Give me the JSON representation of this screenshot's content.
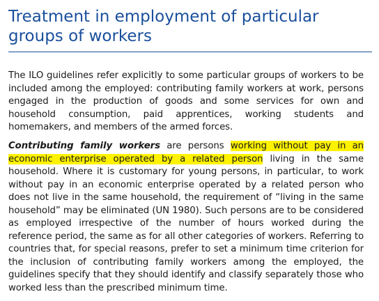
{
  "document": {
    "title": "Treatment in employment of particular groups of workers",
    "paragraph1": "The ILO guidelines refer explicitly to some particular groups of workers to be included among the employed: contributing family workers at work, persons engaged in the production of goods and some services for own and household consumption, paid apprentices, working students and homemakers, and members of the armed forces.",
    "paragraph2": {
      "term": "Contributing family workers",
      "text_before_highlight": " are persons ",
      "highlighted": "working without pay in an economic enterprise operated by a related person",
      "text_after_highlight": " living in the same household. Where it is customary for young persons, in particular, to work without pay in an economic enterprise operated by a related person who does not live in the same household, the requirement of “living in the same household” may be eliminated (UN 1980). Such persons are to be considered as employed irrespective of the number of hours worked during the reference period, the same as for all other categories of workers. Referring to countries that, for special reasons, prefer to set a minimum time criterion for the inclusion of contributing family workers among the employed, the guidelines specify that they should identify and classify separately those who worked less than the prescribed minimum time."
    },
    "colors": {
      "title": "#1a4f9c",
      "highlight": "#fff200",
      "body_text": "#1a1a1a"
    }
  }
}
